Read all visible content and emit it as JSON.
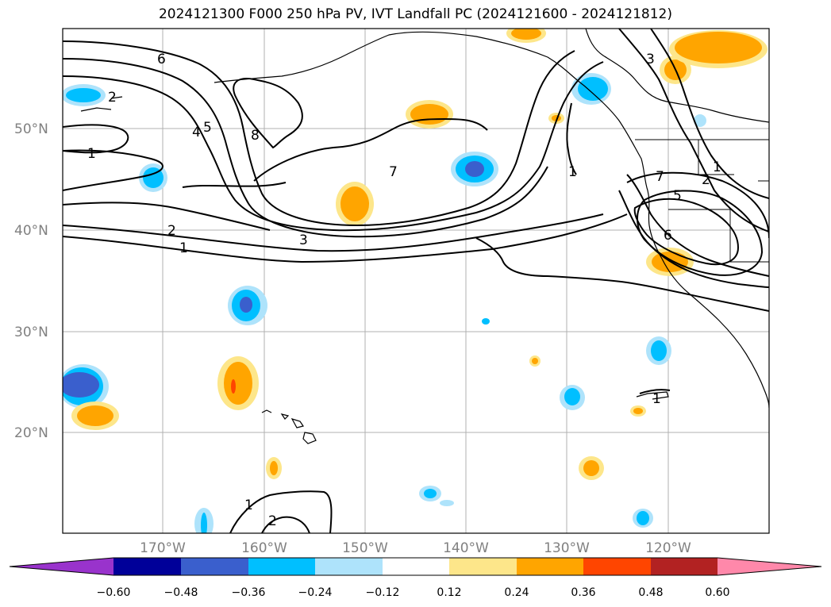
{
  "title": "2024121300 F000 250 hPa PV, IVT Landfall PC (2024121600 - 2024121812)",
  "map": {
    "lat_labels": [
      "50°N",
      "40°N",
      "30°N",
      "20°N"
    ],
    "lon_labels": [
      "170°W",
      "160°W",
      "150°W",
      "140°W",
      "130°W",
      "120°W"
    ],
    "contour_labels": [
      {
        "text": "6"
      },
      {
        "text": "5"
      },
      {
        "text": "4"
      },
      {
        "text": "8"
      },
      {
        "text": "2"
      },
      {
        "text": "1"
      },
      {
        "text": "7"
      },
      {
        "text": "2"
      },
      {
        "text": "1"
      },
      {
        "text": "3"
      },
      {
        "text": "3"
      },
      {
        "text": "1"
      },
      {
        "text": "7"
      },
      {
        "text": "2"
      },
      {
        "text": "1"
      },
      {
        "text": "5"
      },
      {
        "text": "6"
      },
      {
        "text": "1"
      },
      {
        "text": "1"
      },
      {
        "text": "2"
      }
    ]
  },
  "colorbar": {
    "ticks": [
      "−0.60",
      "−0.48",
      "−0.36",
      "−0.24",
      "−0.12",
      "0.12",
      "0.24",
      "0.36",
      "0.48",
      "0.60"
    ],
    "colors": [
      "#9933cc",
      "#000099",
      "#3a5fcd",
      "#00bfff",
      "#aee3fb",
      "#ffffff",
      "#fde68a",
      "#ffa500",
      "#ff4500",
      "#b22222",
      "#ff88aa"
    ]
  }
}
